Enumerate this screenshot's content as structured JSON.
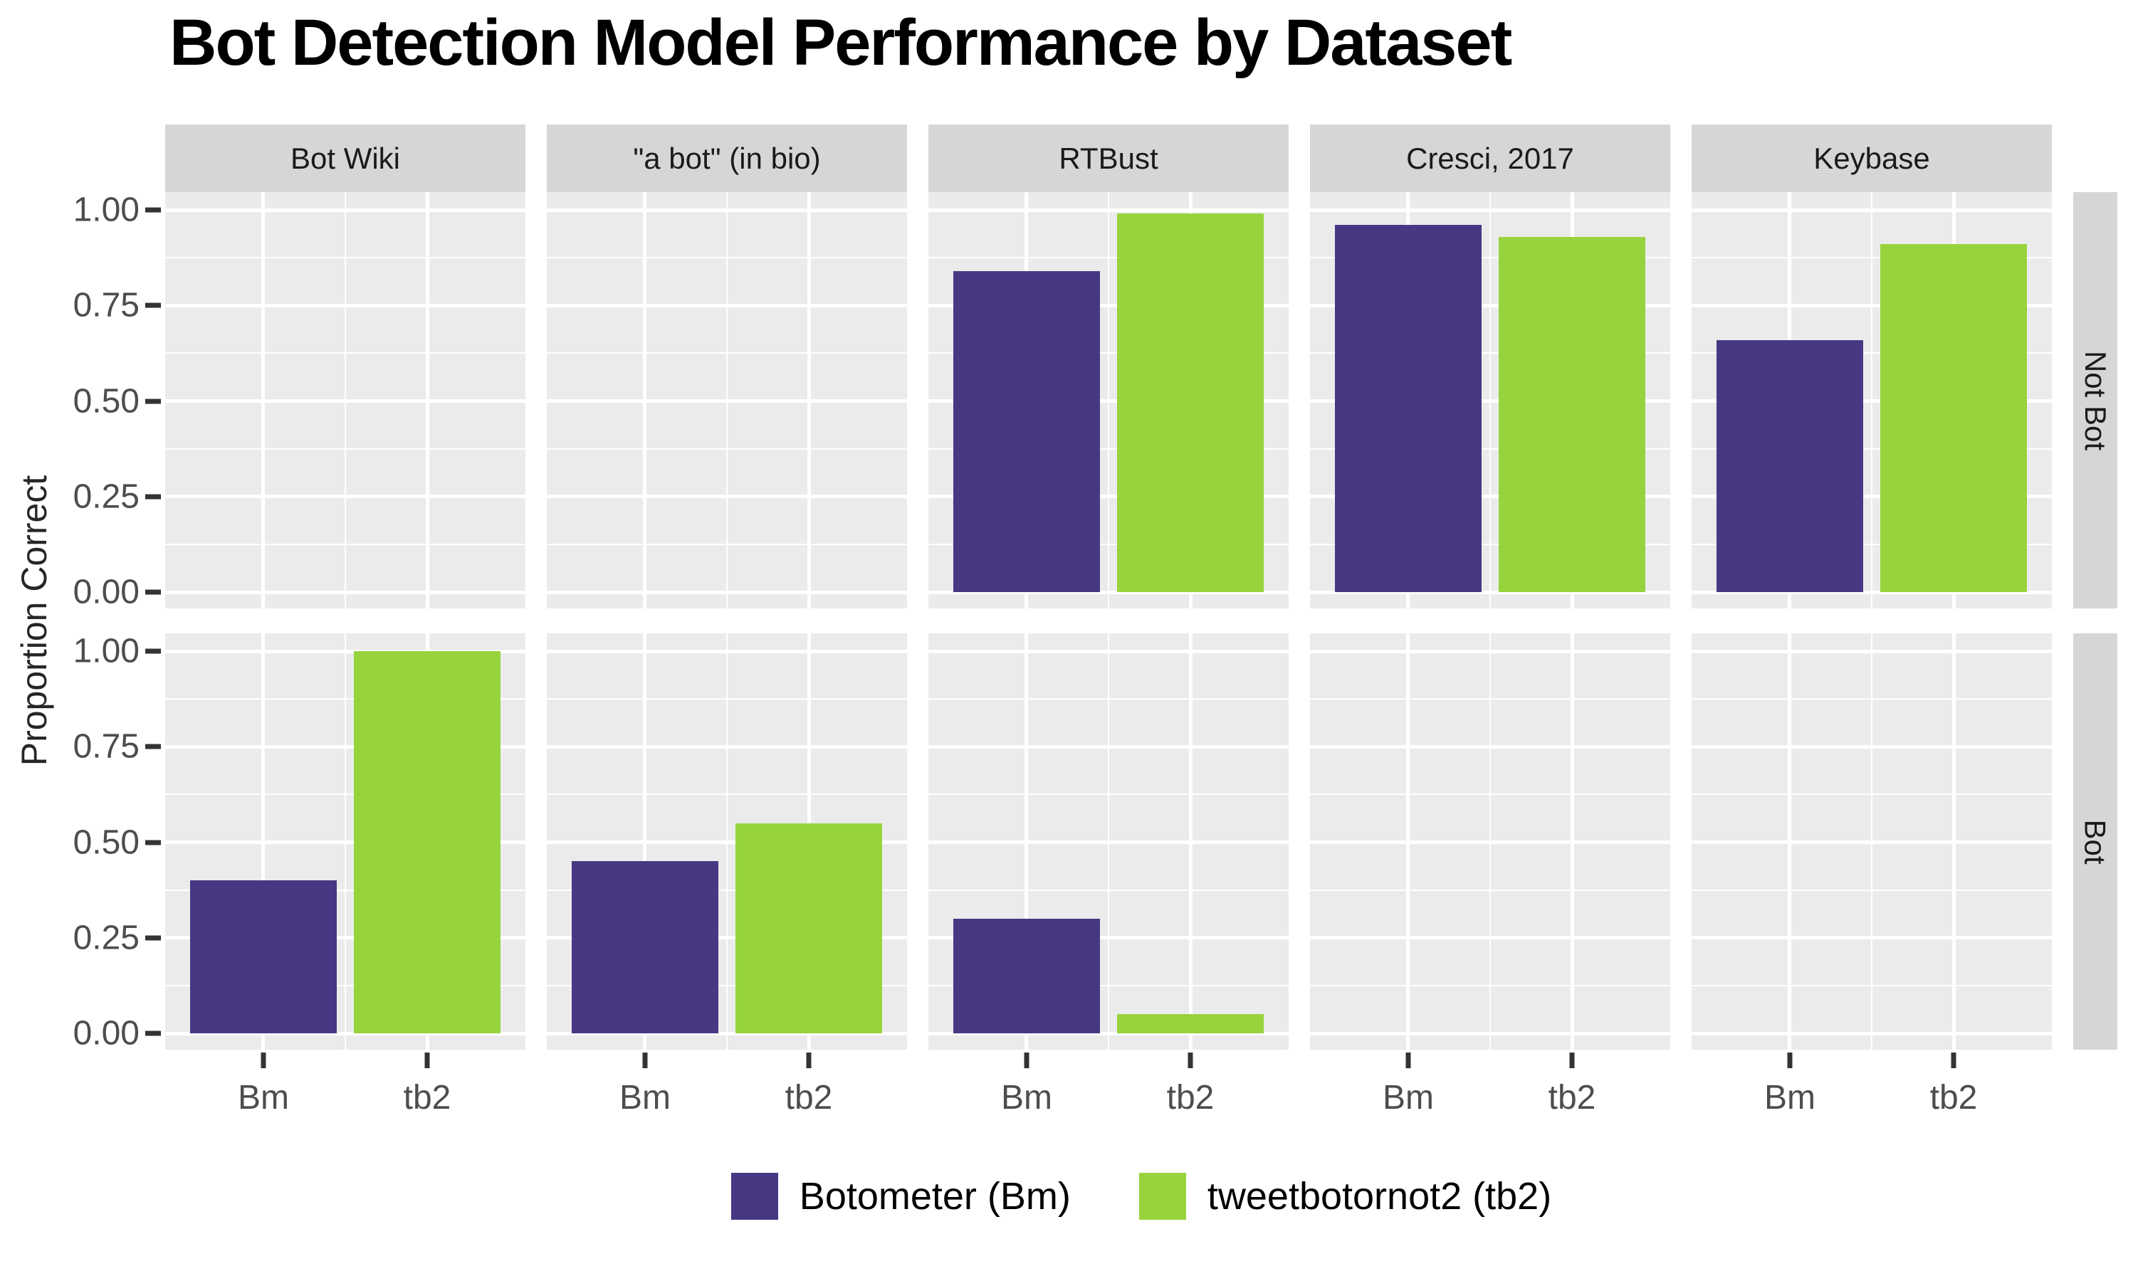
{
  "title": "Bot Detection Model Performance by Dataset",
  "y_axis": {
    "label": "Proportion Correct",
    "tick_labels": [
      "1.00",
      "0.75",
      "0.50",
      "0.25",
      "0.00"
    ]
  },
  "x_axis": {
    "categories": [
      "Bm",
      "tb2"
    ]
  },
  "series": [
    {
      "id": "Bm",
      "label": "Botometer (Bm)",
      "color": "#483883"
    },
    {
      "id": "tb2",
      "label": "tweetbotornot2 (tb2)",
      "color": "#97d33c"
    }
  ],
  "colors": {
    "panel_background": "#ebebeb",
    "strip_background": "#d6d6d6",
    "gridline": "#ffffff",
    "axis_text": "#4d4d4d",
    "title_text": "#000000"
  },
  "chart_data": {
    "type": "bar",
    "title": "Bot Detection Model Performance by Dataset",
    "ylabel": "Proportion Correct",
    "xlabel": "",
    "ylim": [
      0,
      1
    ],
    "y_major_ticks": [
      1.0,
      0.75,
      0.5,
      0.25,
      0.0
    ],
    "grid": "white major and minor gridlines on gray panels",
    "legend_position": "bottom",
    "facet_columns": [
      "Bot Wiki",
      "\"a bot\" (in bio)",
      "RTBust",
      "Cresci, 2017",
      "Keybase"
    ],
    "facet_rows": [
      "Not Bot",
      "Bot"
    ],
    "categories": [
      "Bm",
      "tb2"
    ],
    "panels": [
      {
        "row": "Not Bot",
        "col": "Bot Wiki",
        "bars": []
      },
      {
        "row": "Not Bot",
        "col": "\"a bot\" (in bio)",
        "bars": []
      },
      {
        "row": "Not Bot",
        "col": "RTBust",
        "bars": [
          {
            "series": "Bm",
            "value": 0.84
          },
          {
            "series": "tb2",
            "value": 0.99
          }
        ]
      },
      {
        "row": "Not Bot",
        "col": "Cresci, 2017",
        "bars": [
          {
            "series": "Bm",
            "value": 0.96
          },
          {
            "series": "tb2",
            "value": 0.93
          }
        ]
      },
      {
        "row": "Not Bot",
        "col": "Keybase",
        "bars": [
          {
            "series": "Bm",
            "value": 0.66
          },
          {
            "series": "tb2",
            "value": 0.91
          }
        ]
      },
      {
        "row": "Bot",
        "col": "Bot Wiki",
        "bars": [
          {
            "series": "Bm",
            "value": 0.4
          },
          {
            "series": "tb2",
            "value": 1.0
          }
        ]
      },
      {
        "row": "Bot",
        "col": "\"a bot\" (in bio)",
        "bars": [
          {
            "series": "Bm",
            "value": 0.45
          },
          {
            "series": "tb2",
            "value": 0.55
          }
        ]
      },
      {
        "row": "Bot",
        "col": "RTBust",
        "bars": [
          {
            "series": "Bm",
            "value": 0.3
          },
          {
            "series": "tb2",
            "value": 0.05
          }
        ]
      },
      {
        "row": "Bot",
        "col": "Cresci, 2017",
        "bars": []
      },
      {
        "row": "Bot",
        "col": "Keybase",
        "bars": []
      }
    ]
  }
}
